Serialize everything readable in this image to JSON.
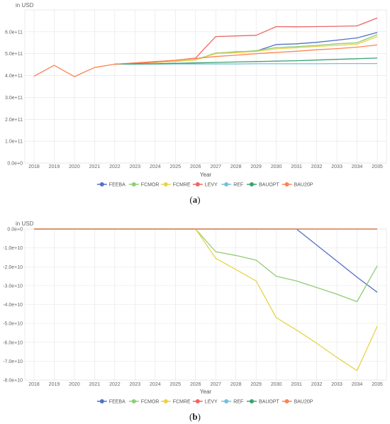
{
  "colors": {
    "FEEBA": "#5470c6",
    "FCMOR": "#91cc75",
    "FCMRE": "#e8d34a",
    "LEVY": "#ee6666",
    "REF": "#73c0de",
    "BAUOPT": "#3ba272",
    "BAU20P": "#fc8452"
  },
  "chart_data": [
    {
      "type": "line",
      "panel": "a",
      "caption_open": "(",
      "caption_letter": "a",
      "caption_close": ")",
      "unit_label": "in USD",
      "xlabel": "Year",
      "categories": [
        "2018",
        "2019",
        "2020",
        "2021",
        "2022",
        "2023",
        "2024",
        "2025",
        "2026",
        "2027",
        "2028",
        "2029",
        "2030",
        "2031",
        "2032",
        "2033",
        "2034",
        "2035"
      ],
      "y_ticks": [
        "0.0e+0",
        "1.0e+11",
        "2.0e+11",
        "3.0e+11",
        "4.0e+11",
        "5.0e+11",
        "6.0e+11"
      ],
      "ylim": [
        0,
        700000000000.0
      ],
      "grid": true,
      "legend_position": "bottom",
      "series": [
        {
          "name": "FEEBA",
          "values": [
            null,
            null,
            null,
            null,
            452000000000.0,
            456000000000.0,
            460000000000.0,
            465000000000.0,
            472000000000.0,
            502000000000.0,
            508000000000.0,
            512000000000.0,
            542000000000.0,
            545000000000.0,
            552000000000.0,
            562000000000.0,
            572000000000.0,
            597000000000.0
          ]
        },
        {
          "name": "FCMOR",
          "values": [
            null,
            null,
            null,
            null,
            452000000000.0,
            456000000000.0,
            460000000000.0,
            465000000000.0,
            472000000000.0,
            503000000000.0,
            507000000000.0,
            514000000000.0,
            528000000000.0,
            532000000000.0,
            538000000000.0,
            545000000000.0,
            550000000000.0,
            587000000000.0
          ]
        },
        {
          "name": "FCMRE",
          "values": [
            null,
            null,
            null,
            null,
            452000000000.0,
            456000000000.0,
            460000000000.0,
            465000000000.0,
            472000000000.0,
            500000000000.0,
            505000000000.0,
            510000000000.0,
            522000000000.0,
            527000000000.0,
            533000000000.0,
            538000000000.0,
            543000000000.0,
            578000000000.0
          ]
        },
        {
          "name": "LEVY",
          "values": [
            null,
            null,
            null,
            null,
            452000000000.0,
            456000000000.0,
            462000000000.0,
            470000000000.0,
            480000000000.0,
            578000000000.0,
            581000000000.0,
            584000000000.0,
            624000000000.0,
            623000000000.0,
            624000000000.0,
            625000000000.0,
            627000000000.0,
            663000000000.0
          ]
        },
        {
          "name": "REF",
          "values": [
            null,
            null,
            null,
            null,
            452000000000.0,
            452000000000.0,
            452000000000.0,
            453000000000.0,
            453000000000.0,
            453000000000.0,
            453000000000.0,
            454000000000.0,
            454000000000.0,
            454000000000.0,
            454000000000.0,
            455000000000.0,
            455000000000.0,
            455000000000.0
          ]
        },
        {
          "name": "BAUOPT",
          "values": [
            null,
            null,
            null,
            null,
            452000000000.0,
            453000000000.0,
            454000000000.0,
            456000000000.0,
            458000000000.0,
            460000000000.0,
            462000000000.0,
            464000000000.0,
            466000000000.0,
            468000000000.0,
            471000000000.0,
            474000000000.0,
            477000000000.0,
            480000000000.0
          ]
        },
        {
          "name": "BAU20P",
          "values": [
            397000000000.0,
            447000000000.0,
            395000000000.0,
            437000000000.0,
            452000000000.0,
            458000000000.0,
            464000000000.0,
            470000000000.0,
            478000000000.0,
            487000000000.0,
            493000000000.0,
            500000000000.0,
            506000000000.0,
            511000000000.0,
            518000000000.0,
            523000000000.0,
            530000000000.0,
            540000000000.0
          ]
        }
      ]
    },
    {
      "type": "line",
      "panel": "b",
      "caption_open": "(",
      "caption_letter": "b",
      "caption_close": ")",
      "unit_label": "in USD",
      "xlabel": "Year",
      "categories": [
        "2018",
        "2019",
        "2020",
        "2021",
        "2022",
        "2023",
        "2024",
        "2025",
        "2026",
        "2027",
        "2028",
        "2029",
        "2030",
        "2031",
        "2032",
        "2033",
        "2034",
        "2035"
      ],
      "y_ticks": [
        "0.0e+0",
        "-1.0e+10",
        "-2.0e+10",
        "-3.0e+10",
        "-4.0e+10",
        "-5.0e+10",
        "-6.0e+10",
        "-7.0e+10",
        "-8.0e+10"
      ],
      "ylim": [
        -80000000000.0,
        0
      ],
      "grid": true,
      "legend_position": "bottom",
      "series": [
        {
          "name": "FEEBA",
          "values": [
            0,
            0,
            0,
            0,
            0,
            0,
            0,
            0,
            0,
            0,
            0,
            0,
            0,
            0,
            -8500000000.0,
            -17000000000.0,
            -25500000000.0,
            -33500000000.0
          ]
        },
        {
          "name": "FCMOR",
          "values": [
            0,
            0,
            0,
            0,
            0,
            0,
            0,
            0,
            0,
            -12000000000.0,
            -14000000000.0,
            -16500000000.0,
            -25000000000.0,
            -27500000000.0,
            -31000000000.0,
            -34500000000.0,
            -38500000000.0,
            -19500000000.0
          ]
        },
        {
          "name": "FCMRE",
          "values": [
            0,
            0,
            0,
            0,
            0,
            0,
            0,
            0,
            0,
            -15500000000.0,
            -21500000000.0,
            -27500000000.0,
            -47000000000.0,
            -53500000000.0,
            -60500000000.0,
            -68000000000.0,
            -75000000000.0,
            -51500000000.0
          ]
        },
        {
          "name": "LEVY",
          "values": [
            0,
            0,
            0,
            0,
            0,
            0,
            0,
            0,
            0,
            0,
            0,
            0,
            0,
            0,
            0,
            0,
            0,
            0
          ]
        },
        {
          "name": "REF",
          "values": [
            0,
            0,
            0,
            0,
            0,
            0,
            0,
            0,
            0,
            0,
            0,
            0,
            0,
            0,
            0,
            0,
            0,
            0
          ]
        },
        {
          "name": "BAUOPT",
          "values": [
            0,
            0,
            0,
            0,
            0,
            0,
            0,
            0,
            0,
            0,
            0,
            0,
            0,
            0,
            0,
            0,
            0,
            0
          ]
        },
        {
          "name": "BAU20P",
          "values": [
            0,
            0,
            0,
            0,
            0,
            0,
            0,
            0,
            0,
            0,
            0,
            0,
            0,
            0,
            0,
            0,
            0,
            0
          ]
        }
      ]
    }
  ]
}
